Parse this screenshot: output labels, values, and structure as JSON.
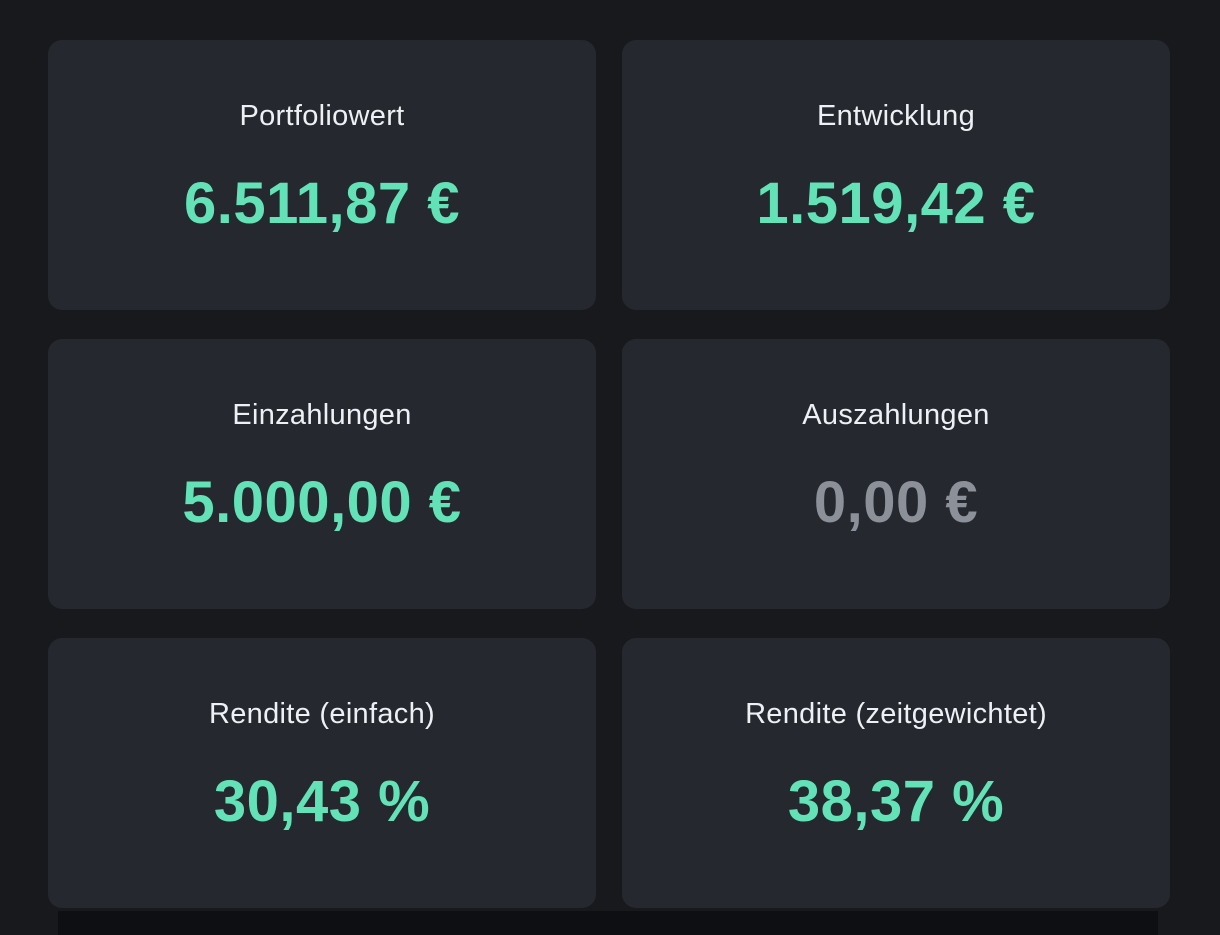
{
  "theme": {
    "page_bg": "#17191d",
    "card_bg": "#25282e",
    "label_color": "#edf0f4",
    "value_positive_color": "#63e2b7",
    "value_neutral_color": "#8b9099",
    "partial_bg": "#0d0f12"
  },
  "cards": [
    {
      "id": "portfolio-value",
      "label": "Portfoliowert",
      "value": "6.511,87 €",
      "tone": "positive"
    },
    {
      "id": "development",
      "label": "Entwicklung",
      "value": "1.519,42 €",
      "tone": "positive"
    },
    {
      "id": "deposits",
      "label": "Einzahlungen",
      "value": "5.000,00 €",
      "tone": "positive"
    },
    {
      "id": "withdrawals",
      "label": "Auszahlungen",
      "value": "0,00 €",
      "tone": "neutral"
    },
    {
      "id": "return-simple",
      "label": "Rendite (einfach)",
      "value": "30,43 %",
      "tone": "positive"
    },
    {
      "id": "return-time-weighted",
      "label": "Rendite (zeitgewichtet)",
      "value": "38,37 %",
      "tone": "positive"
    }
  ]
}
